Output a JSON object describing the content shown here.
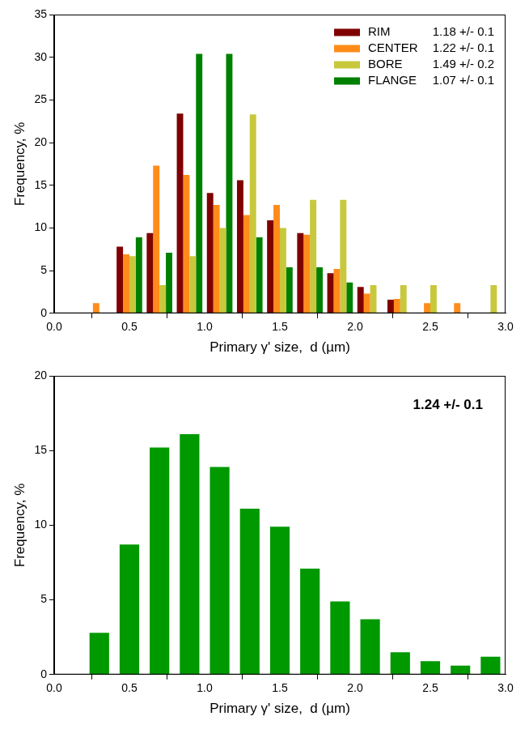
{
  "chart_data": [
    {
      "type": "bar",
      "x_label": "Primary γ' size,  d (µm)",
      "y_label": "Frequency, %",
      "x": [
        0.3,
        0.5,
        0.7,
        0.9,
        1.1,
        1.3,
        1.5,
        1.7,
        1.9,
        2.1,
        2.3,
        2.5,
        2.7,
        2.9
      ],
      "series": [
        {
          "name": "RIM",
          "stat": "1.18 +/- 0.1",
          "color": "#7f0000",
          "values": [
            0,
            7.8,
            9.4,
            23.4,
            14.1,
            15.6,
            10.9,
            9.4,
            4.7,
            3.1,
            1.6,
            0,
            0,
            0
          ]
        },
        {
          "name": "CENTER",
          "stat": "1.22 +/- 0.1",
          "color": "#ff8c1a",
          "values": [
            1.2,
            6.9,
            17.3,
            16.2,
            12.7,
            11.5,
            12.7,
            9.2,
            5.2,
            2.3,
            1.7,
            1.2,
            1.2,
            0
          ]
        },
        {
          "name": "BORE",
          "stat": "1.49 +/- 0.2",
          "color": "#c8c83c",
          "values": [
            0,
            6.7,
            3.3,
            6.7,
            10.0,
            23.3,
            10.0,
            13.3,
            13.3,
            3.3,
            3.3,
            3.3,
            0,
            3.3
          ]
        },
        {
          "name": "FLANGE",
          "stat": "1.07 +/- 0.1",
          "color": "#008000",
          "values": [
            0,
            8.9,
            7.1,
            30.4,
            30.4,
            8.9,
            5.4,
            5.4,
            3.6,
            0,
            0,
            0,
            0,
            0
          ]
        }
      ],
      "xlim": [
        0,
        3
      ],
      "xticks": [
        {
          "value": 0,
          "label": "0.0"
        },
        {
          "value": 0.5,
          "label": "0.5"
        },
        {
          "value": 1,
          "label": "1.0"
        },
        {
          "value": 1.5,
          "label": "1.5"
        },
        {
          "value": 2,
          "label": "2.0"
        },
        {
          "value": 2.5,
          "label": "2.5"
        },
        {
          "value": 3,
          "label": "3.0"
        }
      ],
      "ylim": [
        0,
        35
      ],
      "yticks": [
        0,
        5,
        10,
        15,
        20,
        25,
        30,
        35
      ],
      "grid": false,
      "legend": "upper right"
    },
    {
      "type": "bar",
      "x_label": "Primary γ' size,  d (µm)",
      "y_label": "Frequency, %",
      "annotation": "1.24 +/- 0.1",
      "x": [
        0.3,
        0.5,
        0.7,
        0.9,
        1.1,
        1.3,
        1.5,
        1.7,
        1.9,
        2.1,
        2.3,
        2.5,
        2.7,
        2.9
      ],
      "values": [
        2.8,
        8.7,
        15.2,
        16.1,
        13.9,
        11.1,
        9.9,
        7.1,
        4.9,
        3.7,
        1.5,
        0.9,
        0.6,
        1.2
      ],
      "color": "#009900",
      "xlim": [
        0,
        3
      ],
      "xticks": [
        {
          "value": 0,
          "label": "0.0"
        },
        {
          "value": 0.5,
          "label": "0.5"
        },
        {
          "value": 1,
          "label": "1.0"
        },
        {
          "value": 1.5,
          "label": "1.5"
        },
        {
          "value": 2,
          "label": "2.0"
        },
        {
          "value": 2.5,
          "label": "2.5"
        },
        {
          "value": 3,
          "label": "3.0"
        }
      ],
      "ylim": [
        0,
        20
      ],
      "yticks": [
        0,
        5,
        10,
        15,
        20
      ],
      "grid": false
    }
  ]
}
